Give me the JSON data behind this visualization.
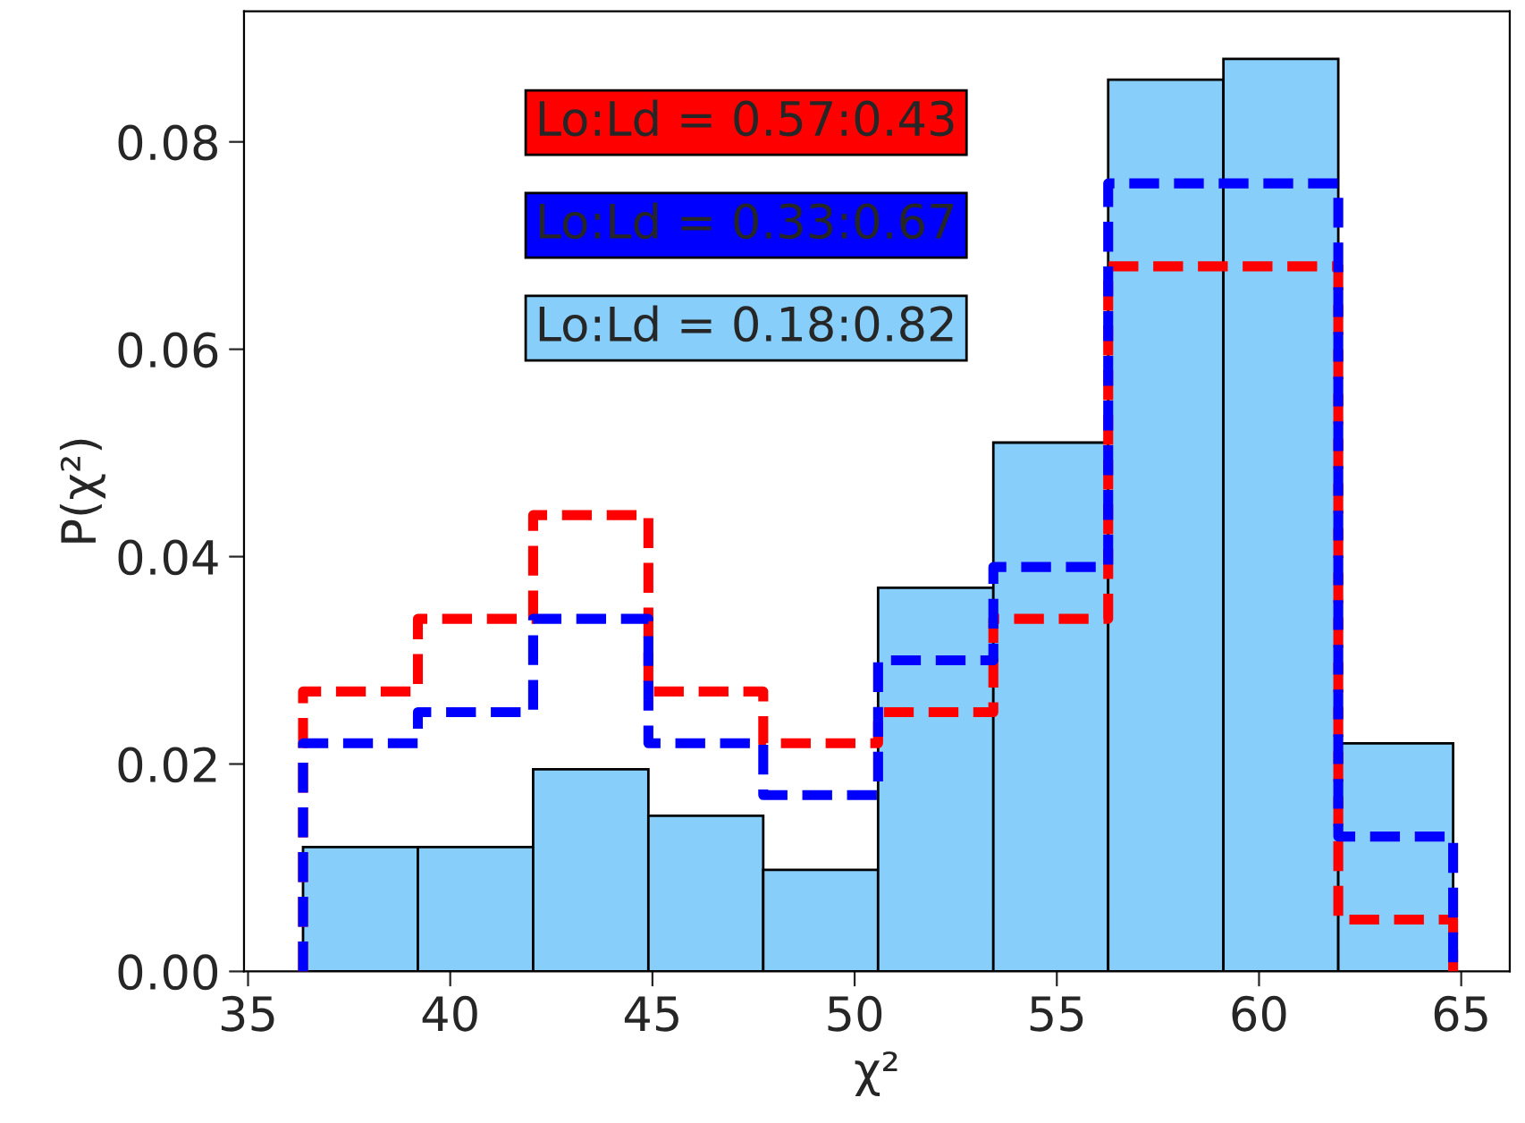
{
  "chart_data": {
    "type": "histogram",
    "xlabel": "χ²",
    "ylabel": "P(χ²)",
    "bins": [
      36.36,
      39.2,
      42.05,
      44.9,
      47.74,
      50.58,
      53.43,
      56.27,
      59.12,
      61.96,
      64.8
    ],
    "series": [
      {
        "name": "Lo:Ld = 0.57:0.43",
        "type": "histogram",
        "line_style": "dashed",
        "color": "#ff0000",
        "values": [
          0.027,
          0.034,
          0.044,
          0.027,
          0.022,
          0.025,
          0.034,
          0.068,
          0.068,
          0.005
        ]
      },
      {
        "name": "Lo:Ld = 0.33:0.67",
        "type": "histogram",
        "line_style": "dashed",
        "color": "#0000ff",
        "values": [
          0.022,
          0.025,
          0.034,
          0.022,
          0.017,
          0.03,
          0.039,
          0.076,
          0.076,
          0.013
        ]
      },
      {
        "name": "Lo:Ld = 0.18:0.82",
        "color": "#87cefa",
        "values": [
          0.012,
          0.012,
          0.0195,
          0.015,
          0.0098,
          0.037,
          0.051,
          0.086,
          0.088,
          0.022
        ]
      }
    ],
    "xlim": [
      34.9,
      66.2
    ],
    "ylim": [
      0,
      0.0926
    ],
    "xticks": [
      35,
      40,
      45,
      50,
      55,
      60,
      65
    ],
    "yticks": [
      {
        "value": 0,
        "label": "0.00"
      },
      {
        "value": 0.02,
        "label": "0.02"
      },
      {
        "value": 0.04,
        "label": "0.04"
      },
      {
        "value": 0.06,
        "label": "0.06"
      },
      {
        "value": 0.08,
        "label": "0.08"
      }
    ],
    "legend": "top left",
    "grid": false
  }
}
